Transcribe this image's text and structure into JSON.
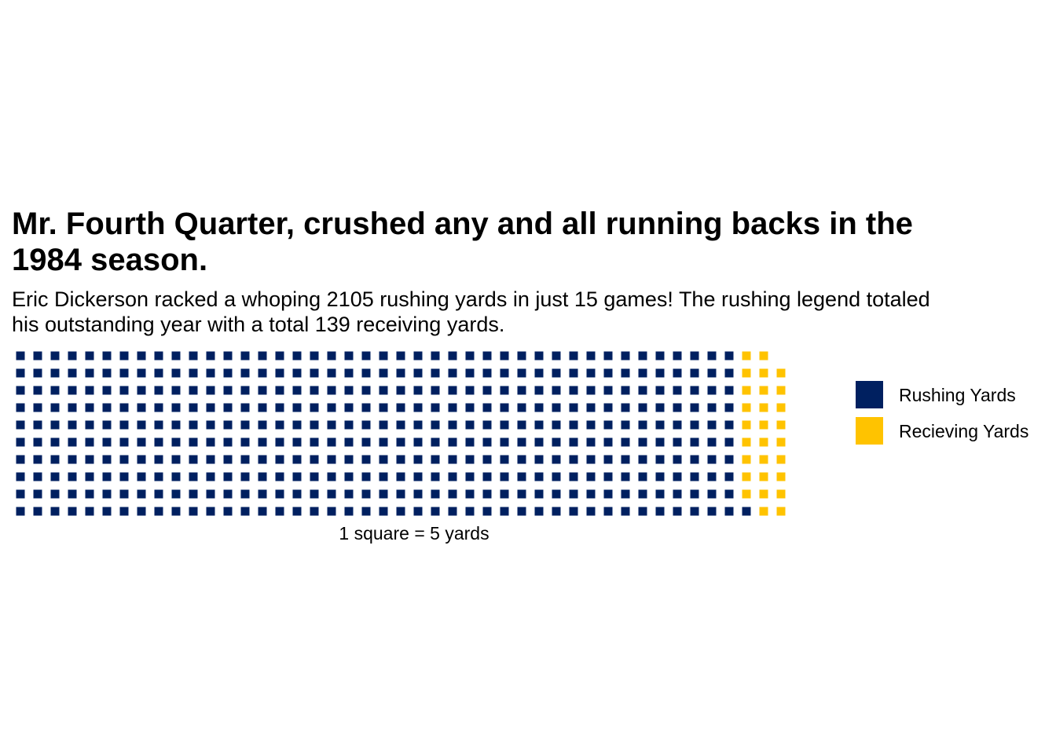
{
  "chart_data": {
    "type": "waffle",
    "title": "Mr. Fourth Quarter, crushed any and all running backs in the 1984 season.",
    "subtitle": "Eric Dickerson racked a whoping 2105 rushing yards in just 15 games! The rushing legend totaled his outstanding year with a total 139 receiving yards.",
    "xlabel": "1 square = 5 yards",
    "rows": 10,
    "fill_order": "column-wise, bottom to top",
    "series": [
      {
        "name": "Rushing Yards",
        "yards": 2105,
        "squares": 421,
        "color": "#002060"
      },
      {
        "name": "Recieving Yards",
        "yards": 139,
        "squares": 28,
        "color": "#FFC300"
      }
    ],
    "legend_position": "right"
  }
}
